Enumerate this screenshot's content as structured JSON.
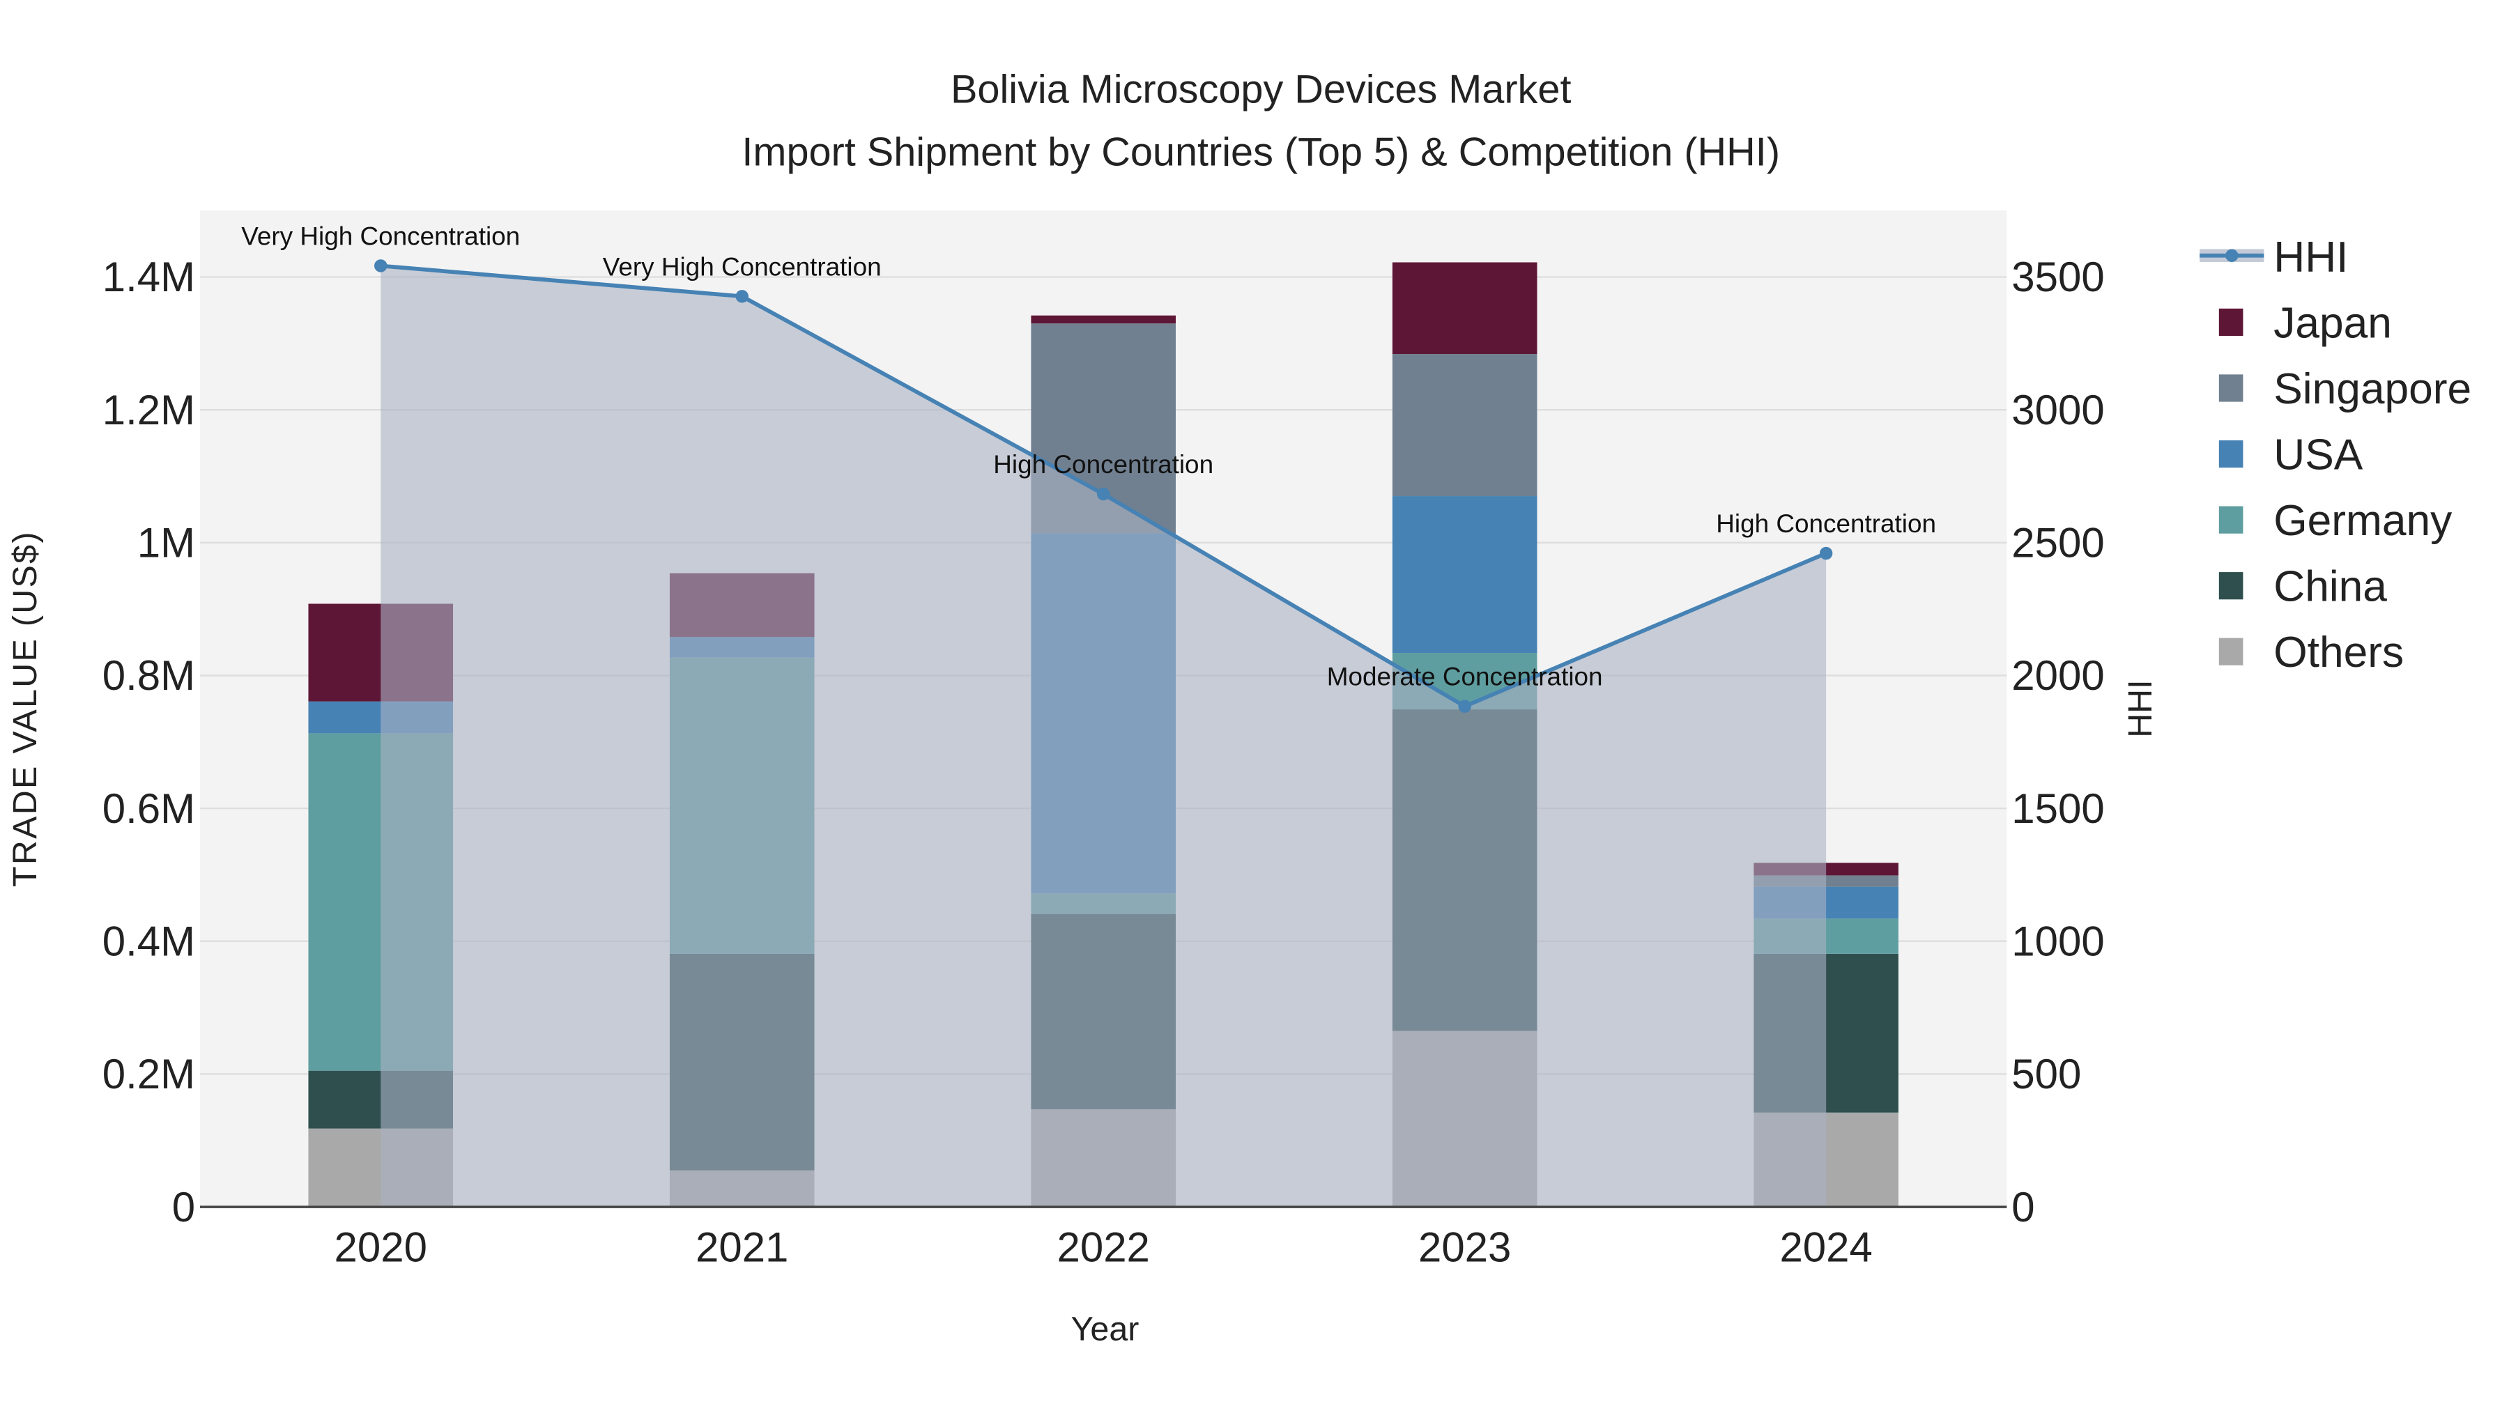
{
  "chart_data": {
    "type": "bar",
    "title": "Bolivia Microscopy Devices Market",
    "subtitle": "Import Shipment by Countries (Top 5) & Competition (HHI)",
    "xlabel": "Year",
    "ylabel": "TRADE VALUE (US$)",
    "y2label": "HHI",
    "categories": [
      "2020",
      "2021",
      "2022",
      "2023",
      "2024"
    ],
    "ylim": [
      0,
      1500000
    ],
    "y2lim": [
      0,
      3750
    ],
    "yticks": [
      {
        "v": 0,
        "label": "0"
      },
      {
        "v": 200000,
        "label": "0.2M"
      },
      {
        "v": 400000,
        "label": "0.4M"
      },
      {
        "v": 600000,
        "label": "0.6M"
      },
      {
        "v": 800000,
        "label": "0.8M"
      },
      {
        "v": 1000000,
        "label": "1M"
      },
      {
        "v": 1200000,
        "label": "1.2M"
      },
      {
        "v": 1400000,
        "label": "1.4M"
      }
    ],
    "y2ticks": [
      {
        "v": 0,
        "label": "0"
      },
      {
        "v": 500,
        "label": "500"
      },
      {
        "v": 1000,
        "label": "1000"
      },
      {
        "v": 1500,
        "label": "1500"
      },
      {
        "v": 2000,
        "label": "2000"
      },
      {
        "v": 2500,
        "label": "2500"
      },
      {
        "v": 3000,
        "label": "3000"
      },
      {
        "v": 3500,
        "label": "3500"
      }
    ],
    "series": [
      {
        "name": "Others",
        "color": "#a9a9a9",
        "values": [
          118000,
          55000,
          147000,
          265000,
          142000
        ]
      },
      {
        "name": "China",
        "color": "#2f4f4f",
        "values": [
          87000,
          326000,
          294000,
          484000,
          239000
        ]
      },
      {
        "name": "Germany",
        "color": "#5f9ea0",
        "values": [
          508000,
          446000,
          31000,
          85000,
          53000
        ]
      },
      {
        "name": "USA",
        "color": "#4682b4",
        "values": [
          48000,
          31000,
          542000,
          236000,
          48000
        ]
      },
      {
        "name": "Singapore",
        "color": "#708090",
        "values": [
          0,
          0,
          316000,
          214000,
          17000
        ]
      },
      {
        "name": "Japan",
        "color": "#5e1636",
        "values": [
          147000,
          96000,
          12000,
          138000,
          19000
        ]
      }
    ],
    "hhi": {
      "name": "HHI",
      "color": "#4682b4",
      "values": [
        3542,
        3427,
        2683,
        1884,
        2460
      ],
      "annotations": [
        "Very High Concentration",
        "Very High Concentration",
        "High Concentration",
        "Moderate Concentration",
        "High Concentration"
      ]
    },
    "legend_order": [
      "HHI",
      "Japan",
      "Singapore",
      "USA",
      "Germany",
      "China",
      "Others"
    ],
    "legend_position": "right",
    "grid": true
  }
}
